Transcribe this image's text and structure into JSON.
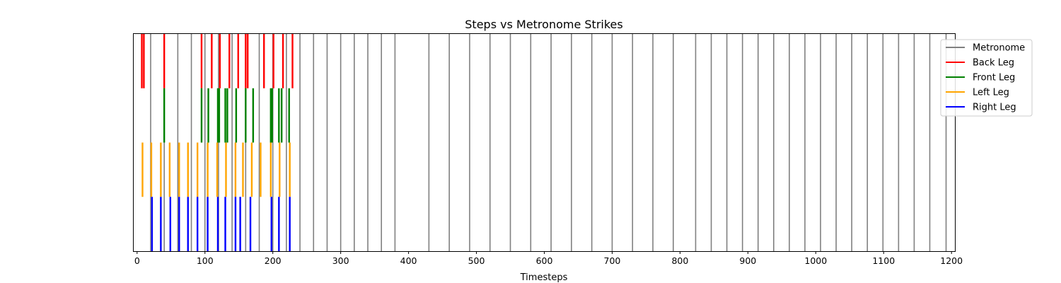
{
  "chart_data": {
    "type": "line",
    "title": "Steps vs Metronome Strikes",
    "xlabel": "Timesteps",
    "ylabel": "",
    "xlim": [
      -5,
      1205
    ],
    "xticks": [
      0,
      100,
      200,
      300,
      400,
      500,
      600,
      700,
      800,
      900,
      1000,
      1100,
      1200
    ],
    "legend_position": "upper right, outside plot",
    "series": [
      {
        "name": "Metronome",
        "color": "#808080",
        "band": [
          0,
          1
        ],
        "x": [
          20,
          40,
          60,
          80,
          100,
          120,
          140,
          160,
          180,
          200,
          220,
          240,
          260,
          280,
          300,
          320,
          340,
          360,
          380,
          430,
          460,
          490,
          520,
          550,
          580,
          610,
          640,
          670,
          700,
          730,
          760,
          790,
          823,
          846,
          869,
          892,
          915,
          938,
          961,
          984,
          1007,
          1030,
          1053,
          1076,
          1099,
          1122,
          1145,
          1168,
          1192
        ]
      },
      {
        "name": "Back Leg",
        "color": "#ff0000",
        "band": [
          0.75,
          1
        ],
        "x": [
          7,
          10,
          40,
          95,
          110,
          122,
          136,
          149,
          160,
          163,
          187,
          201,
          215,
          229
        ]
      },
      {
        "name": "Front Leg",
        "color": "#008000",
        "band": [
          0.5,
          0.75
        ],
        "x": [
          40,
          95,
          105,
          119,
          121,
          130,
          133,
          146,
          160,
          171,
          197,
          199,
          209,
          213,
          224
        ]
      },
      {
        "name": "Left Leg",
        "color": "#ffa500",
        "band": [
          0.25,
          0.5
        ],
        "x": [
          8,
          21,
          35,
          48,
          62,
          75,
          89,
          104,
          118,
          131,
          145,
          156,
          169,
          182,
          197,
          210,
          225
        ]
      },
      {
        "name": "Right Leg",
        "color": "#0000ff",
        "band": [
          0,
          0.25
        ],
        "x": [
          22,
          35,
          49,
          62,
          75,
          89,
          104,
          119,
          130,
          145,
          152,
          167,
          198,
          209,
          225
        ]
      }
    ]
  }
}
